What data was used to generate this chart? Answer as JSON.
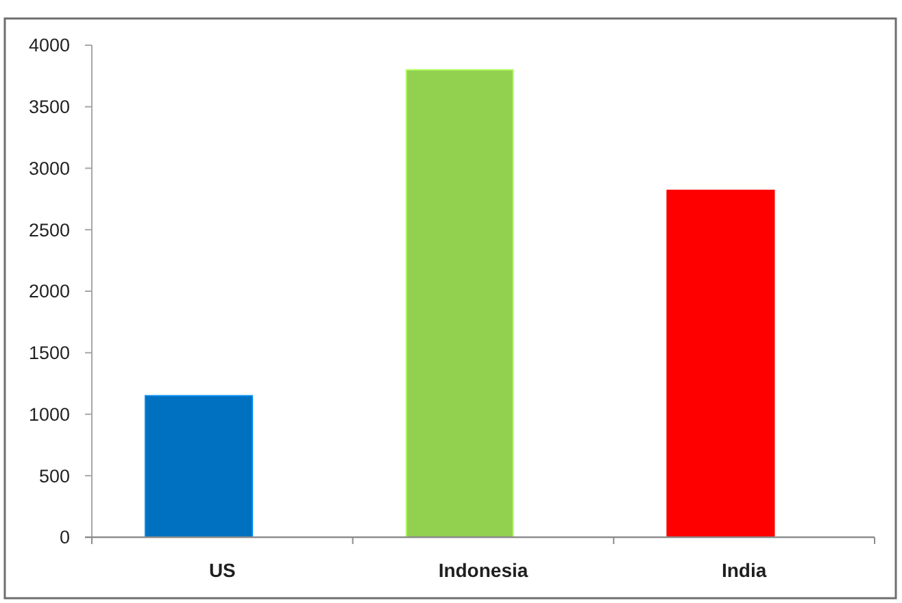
{
  "chart_data": {
    "type": "bar",
    "categories": [
      "US",
      "Indonesia",
      "India"
    ],
    "values": [
      1150,
      3800,
      2820
    ],
    "colors": [
      "#0070c0",
      "#92d050",
      "#ff0000"
    ],
    "ylim": [
      0,
      4000
    ],
    "yticks": [
      0,
      500,
      1000,
      1500,
      2000,
      2500,
      3000,
      3500,
      4000
    ]
  }
}
